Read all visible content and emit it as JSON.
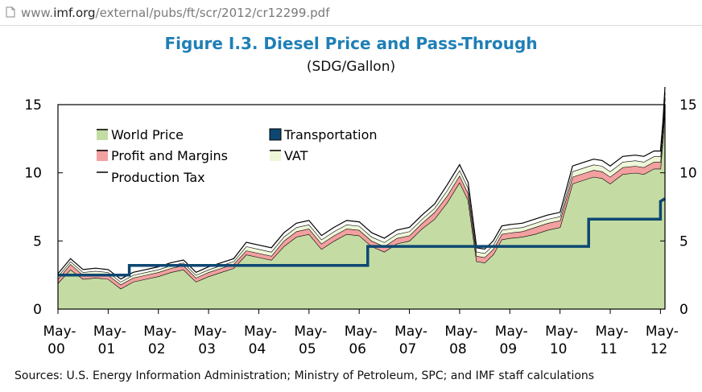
{
  "browser": {
    "url_prefix": "www.",
    "url_host": "imf.org",
    "url_path": "/external/pubs/ft/scr/2012/cr12299.pdf"
  },
  "figure": {
    "title": "Figure I.3. Diesel Price and Pass-Through",
    "subtitle": "(SDG/Gallon)",
    "sources": "Sources: U.S. Energy Information Administration; Ministry of Petroleum, SPC; and IMF staff calculations"
  },
  "chart_data": {
    "type": "area",
    "stacked": true,
    "xlim": [
      2000.33,
      2012.42
    ],
    "ylim": [
      0,
      15
    ],
    "y_ticks": [
      0,
      5,
      10,
      15
    ],
    "y_tick_labels": [
      "0",
      "5",
      "10",
      "15"
    ],
    "y_axis_sides": [
      "left",
      "right"
    ],
    "x_ticks": [
      2000.33,
      2001.33,
      2002.33,
      2003.33,
      2004.33,
      2005.33,
      2006.33,
      2007.33,
      2008.33,
      2009.33,
      2010.33,
      2011.33,
      2012.33
    ],
    "x_tick_labels": [
      [
        "May-",
        "00"
      ],
      [
        "May-",
        "01"
      ],
      [
        "May-",
        "02"
      ],
      [
        "May-",
        "03"
      ],
      [
        "May-",
        "04"
      ],
      [
        "May-",
        "05"
      ],
      [
        "May-",
        "06"
      ],
      [
        "May-",
        "07"
      ],
      [
        "May-",
        "08"
      ],
      [
        "May-",
        "09"
      ],
      [
        "May-",
        "10"
      ],
      [
        "May-",
        "11"
      ],
      [
        "May-",
        "12"
      ]
    ],
    "grid": false,
    "legend_position": "top-left",
    "legend": [
      {
        "key": "world",
        "label": "World Price"
      },
      {
        "key": "transport",
        "label": "Transportation"
      },
      {
        "key": "profit",
        "label": "Profit and Margins"
      },
      {
        "key": "vat",
        "label": "VAT"
      },
      {
        "key": "prodtax",
        "label": "Production Tax"
      }
    ],
    "colors": {
      "world": "#c4dca3",
      "profit": "#f2a0a0",
      "vat": "#eef7d8",
      "prodtax": "#ffffff",
      "transport": "#0e4772",
      "outline": "#000000"
    },
    "x": [
      2000.33,
      2000.58,
      2000.83,
      2001.08,
      2001.33,
      2001.58,
      2001.83,
      2002.08,
      2002.33,
      2002.58,
      2002.83,
      2003.08,
      2003.33,
      2003.58,
      2003.83,
      2004.08,
      2004.33,
      2004.58,
      2004.83,
      2005.08,
      2005.33,
      2005.58,
      2005.83,
      2006.08,
      2006.33,
      2006.58,
      2006.83,
      2007.08,
      2007.33,
      2007.58,
      2007.83,
      2008.08,
      2008.33,
      2008.5,
      2008.67,
      2008.83,
      2009.0,
      2009.17,
      2009.33,
      2009.58,
      2009.83,
      2010.08,
      2010.33,
      2010.58,
      2010.83,
      2011.0,
      2011.17,
      2011.33,
      2011.58,
      2011.83,
      2012.0,
      2012.2,
      2012.33,
      2012.38,
      2012.42
    ],
    "series": [
      {
        "key": "world",
        "values": [
          1.9,
          2.9,
          2.2,
          2.3,
          2.2,
          1.5,
          2.0,
          2.2,
          2.4,
          2.7,
          2.9,
          2.0,
          2.4,
          2.7,
          3.0,
          4.0,
          3.8,
          3.6,
          4.6,
          5.3,
          5.5,
          4.4,
          5.0,
          5.5,
          5.4,
          4.6,
          4.2,
          4.8,
          5.0,
          5.9,
          6.6,
          7.8,
          9.3,
          8.0,
          3.5,
          3.4,
          4.0,
          5.1,
          5.2,
          5.3,
          5.5,
          5.8,
          6.0,
          9.2,
          9.5,
          9.7,
          9.6,
          9.2,
          9.9,
          10.0,
          9.9,
          10.3,
          10.3,
          12.5,
          15.0
        ]
      },
      {
        "key": "profit",
        "values": [
          0.3,
          0.4,
          0.3,
          0.3,
          0.3,
          0.3,
          0.3,
          0.3,
          0.3,
          0.3,
          0.3,
          0.3,
          0.3,
          0.3,
          0.3,
          0.3,
          0.3,
          0.3,
          0.4,
          0.4,
          0.4,
          0.4,
          0.4,
          0.4,
          0.4,
          0.4,
          0.4,
          0.4,
          0.4,
          0.4,
          0.5,
          0.5,
          0.5,
          0.5,
          0.4,
          0.4,
          0.4,
          0.4,
          0.4,
          0.4,
          0.5,
          0.5,
          0.5,
          0.5,
          0.5,
          0.5,
          0.5,
          0.5,
          0.5,
          0.5,
          0.5,
          0.5,
          0.5,
          0.5,
          0.5
        ]
      },
      {
        "key": "vat",
        "values": [
          0.2,
          0.2,
          0.2,
          0.2,
          0.2,
          0.2,
          0.2,
          0.2,
          0.2,
          0.2,
          0.2,
          0.2,
          0.2,
          0.2,
          0.2,
          0.3,
          0.3,
          0.3,
          0.3,
          0.3,
          0.3,
          0.3,
          0.3,
          0.3,
          0.3,
          0.3,
          0.3,
          0.3,
          0.3,
          0.3,
          0.3,
          0.4,
          0.4,
          0.4,
          0.3,
          0.3,
          0.3,
          0.3,
          0.3,
          0.3,
          0.3,
          0.3,
          0.3,
          0.4,
          0.4,
          0.4,
          0.4,
          0.4,
          0.4,
          0.4,
          0.4,
          0.4,
          0.4,
          0.4,
          0.4
        ]
      },
      {
        "key": "prodtax",
        "values": [
          0.2,
          0.2,
          0.2,
          0.2,
          0.2,
          0.2,
          0.2,
          0.2,
          0.2,
          0.2,
          0.2,
          0.2,
          0.2,
          0.2,
          0.2,
          0.3,
          0.3,
          0.3,
          0.3,
          0.3,
          0.3,
          0.3,
          0.3,
          0.3,
          0.3,
          0.3,
          0.3,
          0.3,
          0.3,
          0.3,
          0.3,
          0.4,
          0.4,
          0.4,
          0.3,
          0.3,
          0.3,
          0.3,
          0.3,
          0.3,
          0.3,
          0.3,
          0.3,
          0.4,
          0.4,
          0.4,
          0.4,
          0.4,
          0.4,
          0.4,
          0.4,
          0.4,
          0.4,
          0.4,
          0.4
        ]
      }
    ],
    "line_series": {
      "key": "transport",
      "x": [
        2000.33,
        2001.75,
        2001.75,
        2006.5,
        2006.5,
        2010.9,
        2010.9,
        2012.33,
        2012.33,
        2012.42
      ],
      "values": [
        2.5,
        2.5,
        3.2,
        3.2,
        4.6,
        4.6,
        6.6,
        6.6,
        7.9,
        8.1
      ]
    }
  }
}
